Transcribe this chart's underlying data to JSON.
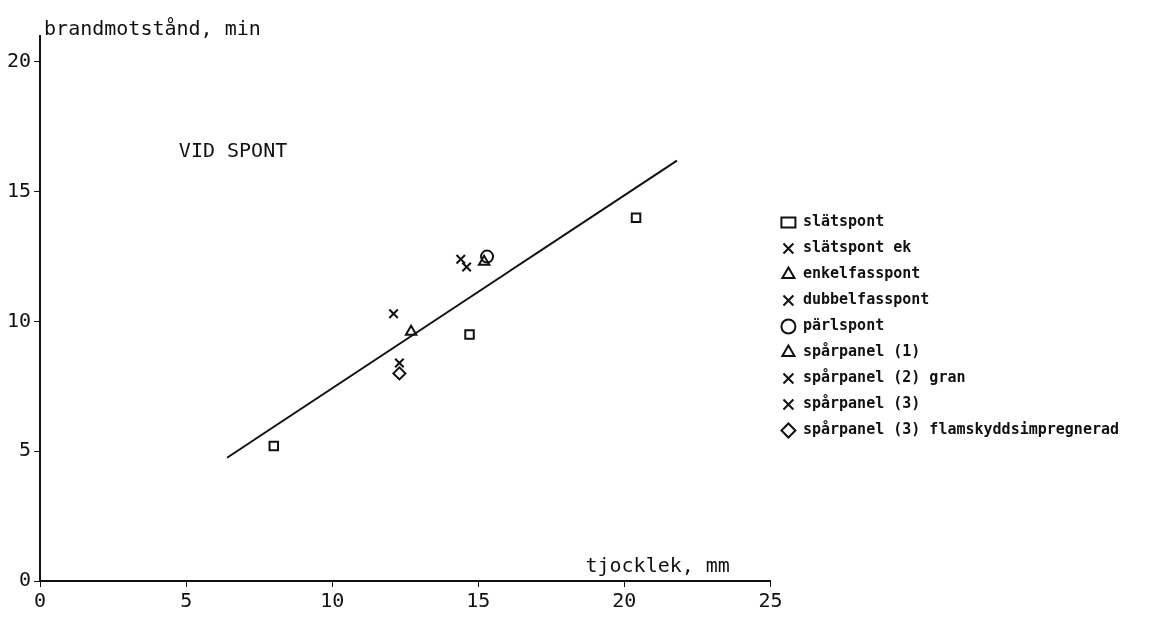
{
  "chart_data": {
    "type": "scatter",
    "xlabel": "tjocklek, mm",
    "ylabel": "brandmotstånd, min",
    "annotations": [
      "VID SPONT"
    ],
    "xlim": [
      0,
      25
    ],
    "xticks": [
      0,
      5,
      10,
      15,
      20,
      25
    ],
    "ylim": [
      0,
      21
    ],
    "yticks": [
      0,
      5,
      10,
      15,
      20
    ],
    "grid": false,
    "legend": "right",
    "series": [
      {
        "name": "slätspont",
        "color": "#111111",
        "marker": "square",
        "x": [
          8.0,
          14.7,
          20.4
        ],
        "values": [
          5.2,
          9.5,
          14.0
        ]
      },
      {
        "name": "slätspont ek",
        "color": "#111111",
        "marker": "cross",
        "x": [
          14.4
        ],
        "values": [
          12.4
        ]
      },
      {
        "name": "enkelfasspont",
        "color": "#111111",
        "marker": "triangle",
        "x": [
          15.2
        ],
        "values": [
          12.3
        ]
      },
      {
        "name": "dubbelfasspont",
        "color": "#111111",
        "marker": "cross",
        "x": [
          14.6
        ],
        "values": [
          12.1
        ]
      },
      {
        "name": "pärlspont",
        "color": "#111111",
        "marker": "circle",
        "x": [
          15.3
        ],
        "values": [
          12.5
        ]
      },
      {
        "name": "spårpanel (1)",
        "color": "#111111",
        "marker": "triangle",
        "x": [
          12.7
        ],
        "values": [
          9.6
        ]
      },
      {
        "name": "spårpanel (2) gran",
        "color": "#111111",
        "marker": "cross",
        "x": [
          12.1
        ],
        "values": [
          10.3
        ]
      },
      {
        "name": "spårpanel (3)",
        "color": "#111111",
        "marker": "cross",
        "x": [
          12.3
        ],
        "values": [
          8.4
        ]
      },
      {
        "name": "spårpanel (3) flamskyddsimpregnerad",
        "color": "#111111",
        "marker": "diamond",
        "x": [
          12.3
        ],
        "values": [
          8.0
        ]
      },
      {
        "type": "line",
        "color": "#111111",
        "marker": "none",
        "line_style": "solid",
        "x": [
          6.4,
          21.8
        ],
        "values": [
          4.75,
          16.2
        ]
      }
    ]
  }
}
